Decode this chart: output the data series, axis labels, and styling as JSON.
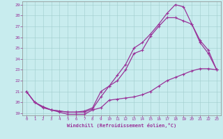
{
  "xlabel": "Windchill (Refroidissement éolien,°C)",
  "bg_color": "#c8ecee",
  "line_color": "#993399",
  "xlim": [
    -0.5,
    23.5
  ],
  "ylim": [
    18.8,
    29.3
  ],
  "xticks": [
    0,
    1,
    2,
    3,
    4,
    5,
    6,
    7,
    8,
    9,
    10,
    11,
    12,
    13,
    14,
    15,
    16,
    17,
    18,
    19,
    20,
    21,
    22,
    23
  ],
  "yticks": [
    19,
    20,
    21,
    22,
    23,
    24,
    25,
    26,
    27,
    28,
    29
  ],
  "line1_x": [
    0,
    1,
    2,
    3,
    4,
    5,
    6,
    7,
    8,
    9,
    10,
    11,
    12,
    13,
    14,
    15,
    16,
    17,
    18,
    19,
    20,
    21,
    22,
    23
  ],
  "line1_y": [
    21.0,
    20.0,
    19.5,
    19.3,
    19.1,
    18.9,
    18.9,
    18.9,
    19.3,
    19.5,
    20.2,
    20.3,
    20.4,
    20.5,
    20.7,
    21.0,
    21.5,
    22.0,
    22.3,
    22.6,
    22.9,
    23.1,
    23.1,
    23.0
  ],
  "line2_x": [
    0,
    1,
    2,
    3,
    4,
    5,
    6,
    7,
    8,
    9,
    10,
    11,
    12,
    13,
    14,
    15,
    16,
    17,
    18,
    19,
    20,
    21,
    22,
    23
  ],
  "line2_y": [
    21.0,
    20.0,
    19.6,
    19.3,
    19.2,
    19.1,
    19.1,
    19.1,
    19.4,
    20.5,
    21.5,
    22.0,
    23.0,
    24.5,
    24.8,
    26.1,
    27.0,
    27.8,
    27.8,
    27.5,
    27.2,
    25.7,
    24.8,
    23.0
  ],
  "line3_x": [
    0,
    1,
    2,
    3,
    4,
    5,
    6,
    7,
    8,
    9,
    10,
    11,
    12,
    13,
    14,
    15,
    16,
    17,
    18,
    19,
    20,
    21,
    22,
    23
  ],
  "line3_y": [
    21.0,
    20.0,
    19.6,
    19.3,
    19.2,
    19.1,
    19.1,
    19.2,
    19.5,
    21.0,
    21.5,
    22.5,
    23.5,
    25.0,
    25.5,
    26.3,
    27.2,
    28.2,
    29.0,
    28.8,
    27.2,
    25.5,
    24.5,
    23.0
  ]
}
